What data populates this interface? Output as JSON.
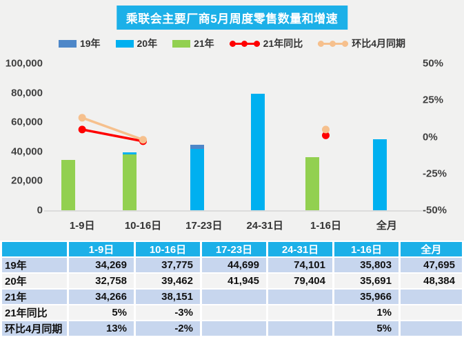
{
  "title": "乘联会主要厂商5月周度零售数量和增速",
  "colors": {
    "title_bg": "#1cb0e8",
    "bar_2019": "#4e87c8",
    "bar_2020": "#00b0f0",
    "bar_2021": "#92d050",
    "line_yoy": "#fe0000",
    "line_mom": "#f6c08d",
    "panel_bg": "#f1f1f0",
    "table_header_bg": "#1cb0e8",
    "table_band_blue": "#c7d6ee",
    "table_band_gray": "#f3f3f3"
  },
  "legend": [
    {
      "label": "19年",
      "type": "swatch",
      "color": "#4e87c8"
    },
    {
      "label": "20年",
      "type": "swatch",
      "color": "#00b0f0"
    },
    {
      "label": "21年",
      "type": "swatch",
      "color": "#92d050"
    },
    {
      "label": "21年同比",
      "type": "line",
      "color": "#fe0000"
    },
    {
      "label": "环比4月同期",
      "type": "line",
      "color": "#f6c08d"
    }
  ],
  "chart_data": {
    "type": "bar",
    "title": "乘联会主要厂商5月周度零售数量和增速",
    "categories": [
      "1-9日",
      "10-16日",
      "17-23日",
      "24-31日",
      "1-16日",
      "全月"
    ],
    "series": [
      {
        "name": "19年",
        "kind": "bar",
        "color": "#4e87c8",
        "values": [
          34269,
          37775,
          44699,
          74101,
          35803,
          47695
        ]
      },
      {
        "name": "20年",
        "kind": "bar",
        "color": "#00b0f0",
        "values": [
          32758,
          39462,
          41945,
          79404,
          35691,
          48384
        ]
      },
      {
        "name": "21年",
        "kind": "bar",
        "color": "#92d050",
        "values": [
          34266,
          38151,
          null,
          null,
          35966,
          null
        ]
      },
      {
        "name": "21年同比",
        "kind": "line",
        "color": "#fe0000",
        "axis": "percent",
        "values": [
          5,
          -3,
          null,
          null,
          1,
          null
        ]
      },
      {
        "name": "环比4月同期",
        "kind": "line",
        "color": "#f6c08d",
        "axis": "percent",
        "values": [
          13,
          -2,
          null,
          null,
          5,
          null
        ]
      }
    ],
    "left_axis": {
      "min": 0,
      "max": 100000,
      "tick_step": 20000,
      "tick_labels": [
        "0",
        "20,000",
        "40,000",
        "60,000",
        "80,000",
        "100,000"
      ]
    },
    "right_axis": {
      "min": -50,
      "max": 50,
      "tick_step": 25,
      "tick_labels": [
        "-50%",
        "-25%",
        "0%",
        "25%",
        "50%"
      ]
    },
    "grid": false,
    "legend_position": "top"
  },
  "table": {
    "headers": [
      "",
      "1-9日",
      "10-16日",
      "17-23日",
      "24-31日",
      "1-16日",
      "全月"
    ],
    "rows": [
      {
        "label": "19年",
        "cells": [
          "34,269",
          "37,775",
          "44,699",
          "74,101",
          "35,803",
          "47,695"
        ]
      },
      {
        "label": "20年",
        "cells": [
          "32,758",
          "39,462",
          "41,945",
          "79,404",
          "35,691",
          "48,384"
        ]
      },
      {
        "label": "21年",
        "cells": [
          "34,266",
          "38,151",
          "",
          "",
          "35,966",
          ""
        ]
      },
      {
        "label": "21年同比",
        "cells": [
          "5%",
          "-3%",
          "",
          "",
          "1%",
          ""
        ]
      },
      {
        "label": "环比4月同期",
        "cells": [
          "13%",
          "-2%",
          "",
          "",
          "5%",
          ""
        ]
      }
    ]
  }
}
